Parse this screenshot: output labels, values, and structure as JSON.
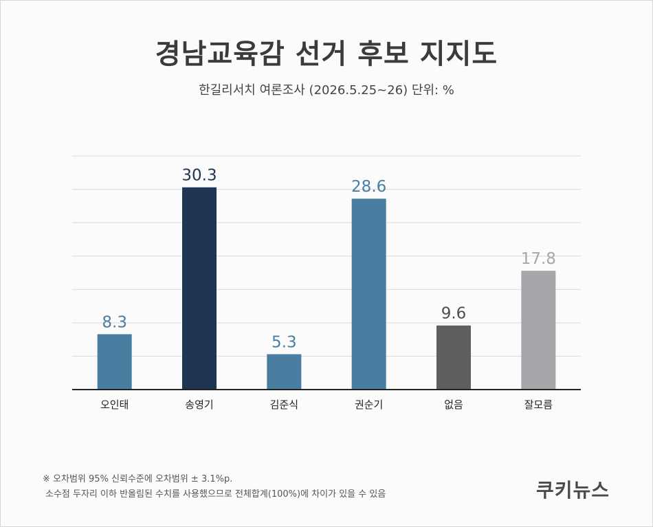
{
  "header": {
    "title": "경남교육감 선거 후보 지지도",
    "subtitle": "한길리서치 여론조사 (2026.5.25~26) 단위: %"
  },
  "chart_data": {
    "type": "bar",
    "title": "경남교육감 선거 후보 지지도",
    "subtitle": "한길리서치 여론조사 (2026.5.25~26) 단위: %",
    "categories": [
      "오인태",
      "송영기",
      "김준식",
      "권순기",
      "없음",
      "잘모름"
    ],
    "values": [
      8.3,
      30.3,
      5.3,
      28.6,
      9.6,
      17.8
    ],
    "value_labels": [
      "8.3",
      "30.3",
      "5.3",
      "28.6",
      "9.6",
      "17.8"
    ],
    "colors": [
      "#4a7ea0",
      "#1f3554",
      "#4a7ea0",
      "#4a7ea0",
      "#5e5e5e",
      "#a6a7ab"
    ],
    "label_colors": [
      "#4a7ea0",
      "#1f3554",
      "#4a7ea0",
      "#4a7ea0",
      "#4f4f4f",
      "#a6a7ab"
    ],
    "ylim": [
      0,
      35
    ],
    "grid": true,
    "xlabel": "",
    "ylabel": ""
  },
  "footnote": {
    "line1": "※ 오차범위 95% 신뢰수준에 오차범위 ± 3.1%p.",
    "line2": "소수점 두자리 이하 반올림된 수치를 사용했으므로 전체합계(100%)에 차이가 있을 수 있음"
  },
  "brand": {
    "logo_text": "쿠키뉴스"
  }
}
